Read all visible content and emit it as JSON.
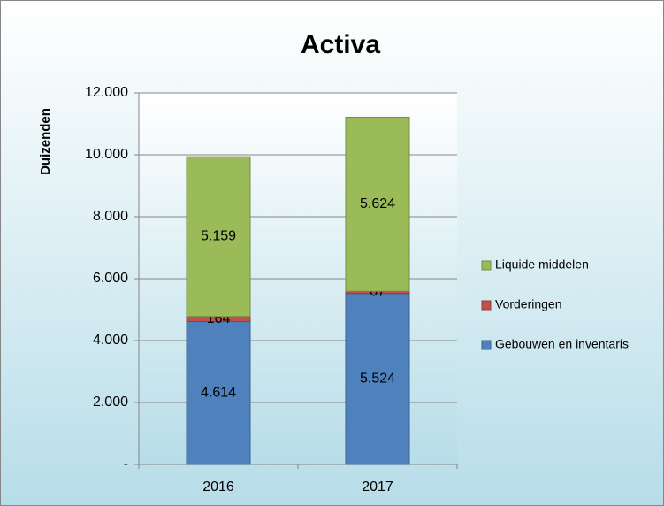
{
  "chart_data": {
    "type": "stacked_bar",
    "title": "Activa",
    "y_label": "Duizenden",
    "categories": [
      "2016",
      "2017"
    ],
    "series": [
      {
        "name": "Gebouwen en inventaris",
        "color": "#4f81bd",
        "values": [
          4614,
          5524
        ],
        "value_labels": [
          "4.614",
          "5.524"
        ]
      },
      {
        "name": "Vorderingen",
        "color": "#c0504d",
        "values": [
          164,
          67
        ],
        "value_labels": [
          "164",
          "67"
        ]
      },
      {
        "name": "Liquide middelen",
        "color": "#9bbb59",
        "values": [
          5159,
          5624
        ],
        "value_labels": [
          "5.159",
          "5.624"
        ]
      }
    ],
    "ylim": [
      0,
      12000
    ],
    "yticks": [
      {
        "value": 0,
        "label": "-"
      },
      {
        "value": 2000,
        "label": "2.000"
      },
      {
        "value": 4000,
        "label": "4.000"
      },
      {
        "value": 6000,
        "label": "6.000"
      },
      {
        "value": 8000,
        "label": "8.000"
      },
      {
        "value": 10000,
        "label": "10.000"
      },
      {
        "value": 12000,
        "label": "12.000"
      }
    ],
    "grid": true,
    "legend": "right"
  }
}
